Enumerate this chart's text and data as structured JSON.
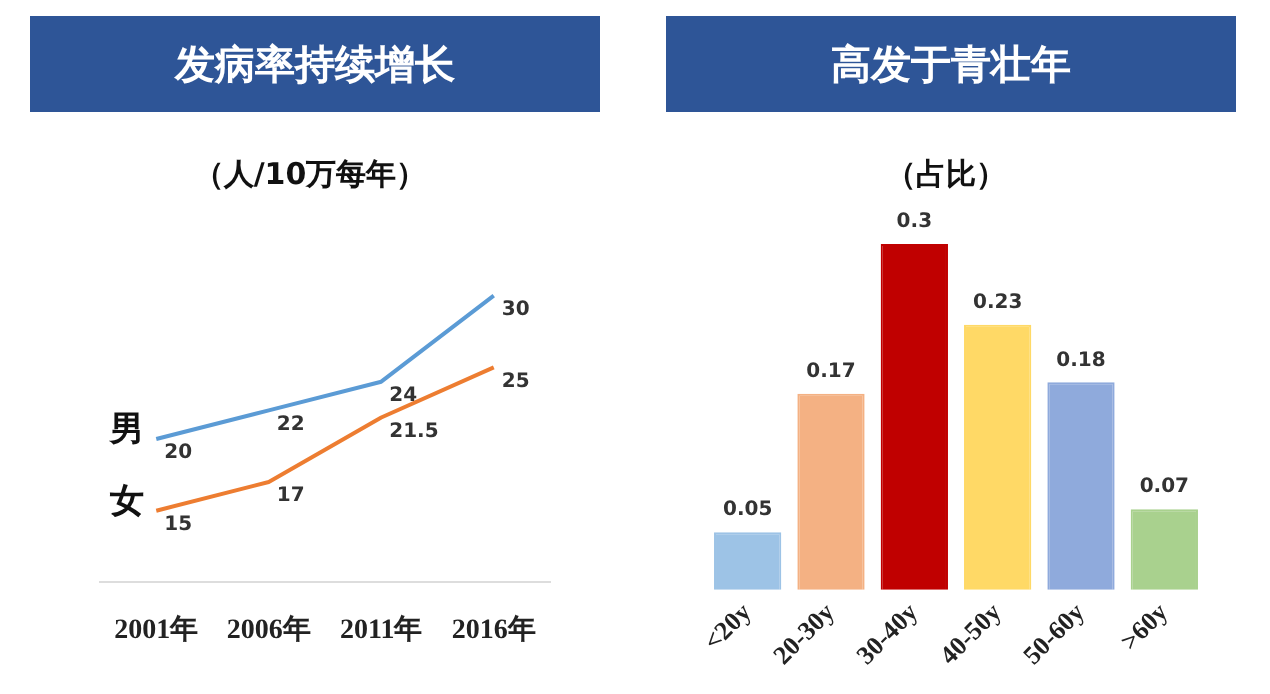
{
  "chart_data": [
    {
      "type": "line",
      "title": "发病率持续增长",
      "subtitle": "（人/10万每年）",
      "categories": [
        "2001年",
        "2006年",
        "2011年",
        "2016年"
      ],
      "series": [
        {
          "name": "男",
          "color": "#5b9bd5",
          "values": [
            20,
            22,
            24,
            30
          ]
        },
        {
          "name": "女",
          "color": "#ed7d31",
          "values": [
            15,
            17,
            21.5,
            25
          ]
        }
      ],
      "data_labels": true,
      "legend": false,
      "grid": false
    },
    {
      "type": "bar",
      "title": "高发于青壮年",
      "subtitle": "（占比）",
      "categories": [
        "<20y",
        "20-30y",
        "30-40y",
        "40-50y",
        "50-60y",
        ">60y"
      ],
      "values": [
        0.05,
        0.17,
        0.3,
        0.23,
        0.18,
        0.07
      ],
      "colors": [
        "#9dc3e6",
        "#f4b183",
        "#c00000",
        "#ffd966",
        "#8faadc",
        "#a9d18e"
      ],
      "data_labels": true,
      "legend": false,
      "grid": false
    }
  ]
}
